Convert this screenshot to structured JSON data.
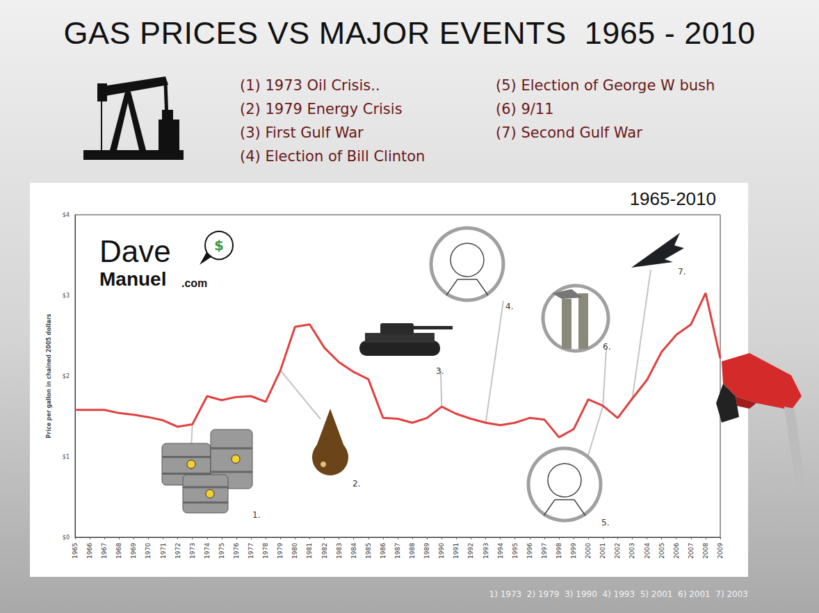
{
  "chart_data": {
    "type": "line",
    "title": "GAS PRICES VS MAJOR EVENTS  1965 - 2010",
    "events": [
      "(1) 1973 Oil Crisis..",
      "(2) 1979 Energy Crisis",
      "(3) First Gulf War",
      "(4) Election of Bill Clinton",
      "(5) Election of George W bush",
      "(6) 9/11",
      "(7) Second Gulf War"
    ],
    "panel_label": "1965-2010",
    "logo": [
      "Dave",
      "Manuel",
      ".com",
      "$"
    ],
    "footer": "1) 1973  2) 1979  3) 1990  4) 1993  5) 2001  6) 2001  7) 2003",
    "y_label": "Price per gallon in chained 2005 dollars",
    "categories": [
      "1965",
      "1966",
      "1967",
      "1968",
      "1969",
      "1970",
      "1971",
      "1972",
      "1973",
      "1974",
      "1975",
      "1976",
      "1977",
      "1978",
      "1979",
      "1980",
      "1981",
      "1982",
      "1983",
      "1984",
      "1985",
      "1986",
      "1987",
      "1988",
      "1989",
      "1990",
      "1991",
      "1992",
      "1993",
      "1994",
      "1995",
      "1996",
      "1997",
      "1998",
      "1999",
      "2000",
      "2001",
      "2002",
      "2003",
      "2004",
      "2005",
      "2006",
      "2007",
      "2008",
      "2009"
    ],
    "values": [
      1.58,
      1.58,
      1.58,
      1.54,
      1.52,
      1.49,
      1.45,
      1.37,
      1.4,
      1.75,
      1.7,
      1.74,
      1.75,
      1.68,
      2.07,
      2.61,
      2.64,
      2.35,
      2.17,
      2.05,
      1.96,
      1.48,
      1.47,
      1.42,
      1.48,
      1.62,
      1.53,
      1.47,
      1.42,
      1.39,
      1.42,
      1.48,
      1.46,
      1.24,
      1.34,
      1.71,
      1.63,
      1.48,
      1.72,
      1.95,
      2.3,
      2.51,
      2.64,
      3.03,
      2.22
    ],
    "color": "#e0403f",
    "ylim": [
      0,
      4
    ],
    "yticks": [
      {
        "value": 0,
        "label": "$0"
      },
      {
        "value": 1,
        "label": "$1"
      },
      {
        "value": 2,
        "label": "$2"
      },
      {
        "value": 3,
        "label": "$3"
      },
      {
        "value": 4,
        "label": "$4"
      }
    ],
    "grid": false,
    "annotations": [
      {
        "category": "1973",
        "label": "1."
      },
      {
        "category": "1979",
        "label": "2."
      },
      {
        "category": "1990",
        "label": "3."
      },
      {
        "category": "1993",
        "label": "4."
      },
      {
        "category": "2001",
        "label": "5."
      },
      {
        "category": "2001",
        "label": "6."
      },
      {
        "category": "2003",
        "label": "7."
      }
    ]
  }
}
